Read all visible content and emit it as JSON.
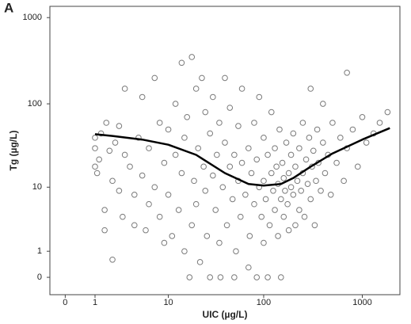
{
  "chart_data": {
    "type": "scatter",
    "panel_label": "A",
    "x_label": "UIC (µg/L)",
    "y_label": "Tg (µg/L)",
    "xscale": "log1p",
    "yscale": "log1p",
    "xlim": [
      -0.3,
      2400
    ],
    "ylim": [
      -0.37,
      1350
    ],
    "xticks": [
      0,
      1,
      10,
      100,
      1000
    ],
    "yticks": [
      0,
      1,
      10,
      100,
      1000
    ],
    "marker_color": "#7a7a7a",
    "x": [
      1,
      1,
      1,
      1.1,
      1.2,
      1.3,
      1.5,
      1.5,
      1.6,
      1.8,
      2,
      2,
      2.2,
      2.5,
      2.5,
      2.8,
      3,
      3,
      3.5,
      4,
      4,
      4.5,
      5,
      5,
      5.5,
      6,
      6,
      7,
      7,
      8,
      8,
      9,
      9,
      10,
      10,
      11,
      12,
      12,
      13,
      14,
      14,
      15,
      15,
      16,
      17,
      18,
      18,
      19,
      20,
      20,
      21,
      22,
      23,
      24,
      25,
      25,
      26,
      28,
      28,
      30,
      30,
      32,
      33,
      35,
      35,
      36,
      38,
      40,
      40,
      42,
      45,
      45,
      48,
      50,
      50,
      52,
      55,
      55,
      58,
      60,
      60,
      65,
      70,
      70,
      72,
      75,
      80,
      80,
      85,
      85,
      90,
      90,
      95,
      100,
      100,
      100,
      105,
      110,
      110,
      115,
      120,
      120,
      125,
      130,
      130,
      135,
      140,
      140,
      145,
      150,
      150,
      155,
      160,
      160,
      165,
      170,
      175,
      180,
      180,
      190,
      190,
      200,
      200,
      210,
      210,
      220,
      230,
      230,
      240,
      250,
      250,
      260,
      270,
      280,
      290,
      300,
      300,
      310,
      320,
      330,
      340,
      350,
      360,
      380,
      400,
      400,
      420,
      450,
      480,
      500,
      550,
      600,
      650,
      700,
      700,
      800,
      900,
      1000,
      1100,
      1300,
      1500,
      1800
    ],
    "values": [
      40,
      18,
      30,
      15,
      22,
      45,
      5,
      2.5,
      60,
      28,
      12,
      0.6,
      35,
      9,
      55,
      4,
      25,
      150,
      18,
      3,
      8,
      40,
      120,
      14,
      2.5,
      6,
      30,
      200,
      10,
      60,
      4,
      20,
      1.5,
      50,
      8,
      2,
      100,
      25,
      5,
      300,
      15,
      40,
      1,
      70,
      0,
      350,
      3,
      12,
      150,
      6,
      30,
      0.5,
      200,
      18,
      9,
      80,
      2,
      45,
      0,
      120,
      14,
      5,
      25,
      60,
      1.5,
      0,
      10,
      200,
      35,
      3,
      18,
      90,
      7,
      0,
      25,
      1,
      55,
      12,
      4,
      150,
      20,
      8,
      30,
      0.3,
      2,
      15,
      60,
      6,
      0,
      22,
      10,
      120,
      4,
      40,
      12,
      1.5,
      7,
      25,
      0,
      3,
      15,
      80,
      9,
      5,
      30,
      18,
      2,
      11,
      50,
      7,
      0,
      20,
      13,
      4,
      9,
      35,
      6,
      15,
      2.5,
      25,
      10,
      45,
      8,
      3,
      18,
      12,
      30,
      5,
      9,
      60,
      15,
      4,
      22,
      11,
      40,
      7,
      150,
      18,
      28,
      3,
      12,
      50,
      20,
      9,
      35,
      100,
      15,
      25,
      8,
      60,
      20,
      40,
      12,
      230,
      30,
      50,
      18,
      70,
      35,
      45,
      60,
      80
    ],
    "fit_line": {
      "color": "#000000",
      "x": [
        1,
        2,
        5,
        10,
        20,
        40,
        70,
        100,
        150,
        200,
        300,
        500,
        1000,
        1900
      ],
      "values": [
        44,
        42,
        38,
        33,
        25,
        15,
        11,
        10.5,
        11,
        13,
        18,
        26,
        38,
        52
      ]
    }
  }
}
